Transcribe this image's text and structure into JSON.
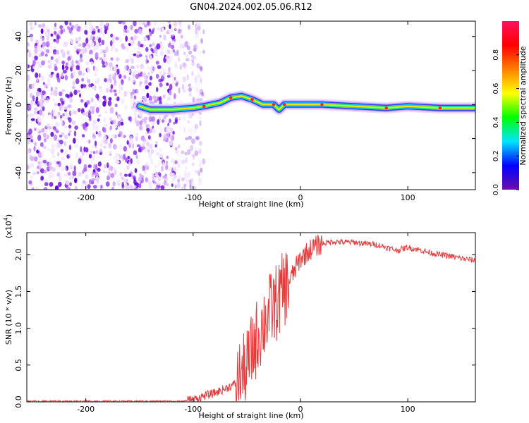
{
  "title": "GN04.2024.002.05.06.R12",
  "chart_data": [
    {
      "type": "heatmap",
      "xlabel": "Height of straight line (km)",
      "ylabel": "Frequency (Hz)",
      "xlim": [
        -255,
        163
      ],
      "ylim": [
        -50,
        49
      ],
      "xticks": [
        -200,
        -100,
        0,
        100
      ],
      "yticks": [
        -40,
        -20,
        0,
        20,
        40
      ],
      "colorbar": {
        "label": "Normalized spectral amplitude",
        "range": [
          0,
          1
        ],
        "ticks": [
          "0.0",
          "0.2",
          "0.4",
          "0.6",
          "0.8"
        ],
        "stops": [
          "#6a0fa8",
          "#0000ff",
          "#00e5ff",
          "#00ff00",
          "#ffff00",
          "#ff8000",
          "#ff0000",
          "#ff1060"
        ]
      },
      "noise_region_x": [
        -255,
        -115
      ],
      "signal_track": [
        {
          "x": -150,
          "y": -1
        },
        {
          "x": -140,
          "y": -3
        },
        {
          "x": -120,
          "y": -3
        },
        {
          "x": -100,
          "y": -2
        },
        {
          "x": -90,
          "y": -1
        },
        {
          "x": -75,
          "y": 1
        },
        {
          "x": -65,
          "y": 4
        },
        {
          "x": -55,
          "y": 5
        },
        {
          "x": -45,
          "y": 3
        },
        {
          "x": -35,
          "y": 0
        },
        {
          "x": -25,
          "y": 0
        },
        {
          "x": -20,
          "y": -3
        },
        {
          "x": -15,
          "y": 0
        },
        {
          "x": 0,
          "y": 0
        },
        {
          "x": 20,
          "y": 0
        },
        {
          "x": 50,
          "y": -1
        },
        {
          "x": 80,
          "y": -2
        },
        {
          "x": 100,
          "y": -1
        },
        {
          "x": 130,
          "y": -2
        },
        {
          "x": 163,
          "y": -2
        }
      ]
    },
    {
      "type": "line",
      "xlabel": "Height of straight line (km)",
      "ylabel": "SNR (10 * v/v)",
      "multiplier": "(x10",
      "multiplier_exp": "4",
      "multiplier_close": ")",
      "xlim": [
        -255,
        163
      ],
      "ylim": [
        0,
        2.3
      ],
      "xticks": [
        -200,
        -100,
        0,
        100
      ],
      "yticks": [
        "0.0",
        "0.5",
        "1.0",
        "1.5",
        "2.0"
      ],
      "series": [
        {
          "color": "#e8393b",
          "x": [
            -255,
            -200,
            -150,
            -110,
            -100,
            -90,
            -80,
            -70,
            -60,
            -50,
            -45,
            -40,
            -35,
            -30,
            -25,
            -20,
            -15,
            -10,
            -5,
            0,
            10,
            20,
            30,
            40,
            50,
            60,
            70,
            80,
            90,
            100,
            110,
            120,
            130,
            140,
            150,
            163
          ],
          "y": [
            0.01,
            0.01,
            0.01,
            0.01,
            0.03,
            0.08,
            0.12,
            0.18,
            0.25,
            0.45,
            0.7,
            0.9,
            1.05,
            1.2,
            1.3,
            1.4,
            1.55,
            1.65,
            1.8,
            1.95,
            2.08,
            2.15,
            2.18,
            2.17,
            2.17,
            2.15,
            2.14,
            2.1,
            2.06,
            2.1,
            2.07,
            2.03,
            2.0,
            1.98,
            1.95,
            1.92
          ]
        }
      ]
    }
  ]
}
